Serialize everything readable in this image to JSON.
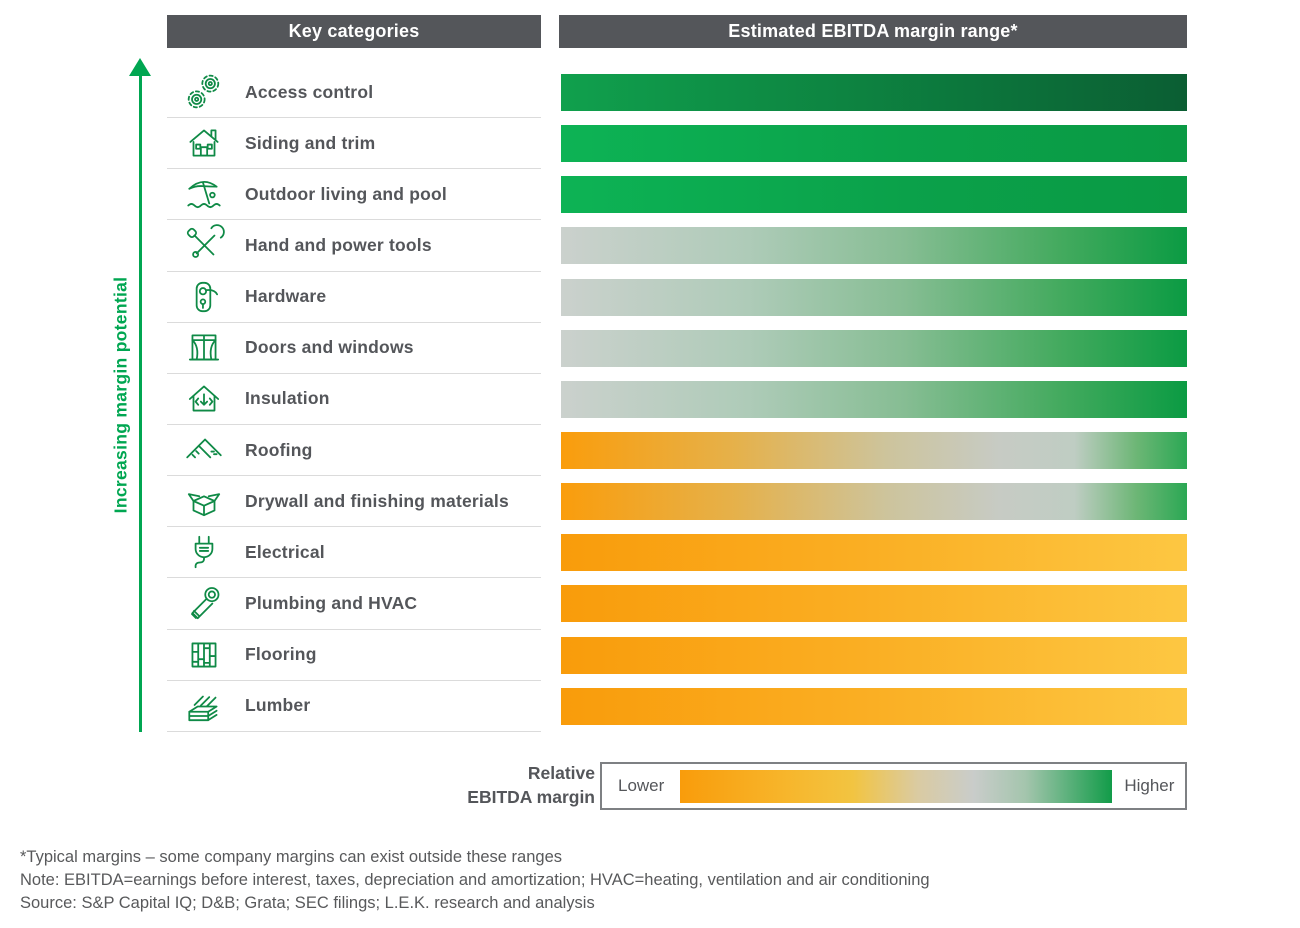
{
  "headers": {
    "left": "Key categories",
    "right": "Estimated EBITDA margin range*"
  },
  "axis_label": "Increasing margin potential",
  "legend": {
    "title_line1": "Relative",
    "title_line2": "EBITDA margin",
    "lower": "Lower",
    "higher": "Higher",
    "gradient": [
      [
        "#F99C0B",
        0
      ],
      [
        "#F7B62C",
        25
      ],
      [
        "#F2C441",
        40
      ],
      [
        "#DACBA2",
        55
      ],
      [
        "#C9CCCA",
        68
      ],
      [
        "#A4C5AD",
        80
      ],
      [
        "#129C49",
        100
      ]
    ]
  },
  "footnotes": [
    "*Typical margins – some company margins can exist outside these ranges",
    "Note: EBITDA=earnings before interest, taxes, depreciation and amortization; HVAC=heating, ventilation and air conditioning",
    "Source: S&P Capital IQ; D&B; Grata; SEC filings; L.E.K. research and analysis"
  ],
  "colors": {
    "header_bg": "#54565A",
    "text_dark": "#54565A",
    "text_muted": "#58595B",
    "accent_green": "#00A651",
    "icon_stroke": "#0F8A46",
    "separator": "#DBDBDB",
    "orange": "#F99C0B",
    "yellow": "#FDC742",
    "neutral_gray": "#C9CCCA",
    "green": "#0A9B43",
    "dark_green": "#0B5E33"
  },
  "chart_data": {
    "type": "heatmap",
    "title": "Estimated EBITDA margin range*",
    "x_axis": {
      "label": "Relative EBITDA margin",
      "scale": [
        "Lower",
        "Higher"
      ],
      "ticks": "none (qualitative)"
    },
    "y_axis": {
      "label": "Increasing margin potential",
      "direction": "margin potential increases toward top"
    },
    "legend_position": "bottom",
    "grid": false,
    "categories": [
      {
        "label": "Access control",
        "icon": "gears",
        "margin_range": "mid-green to darkest-green (highest)",
        "gradient": [
          [
            "#10A04D",
            0
          ],
          [
            "#0D8441",
            45
          ],
          [
            "#0B5E33",
            100
          ]
        ]
      },
      {
        "label": "Siding and trim",
        "icon": "house",
        "margin_range": "high (bright green)",
        "gradient": [
          [
            "#0DB355",
            0
          ],
          [
            "#0BA14A",
            55
          ],
          [
            "#0A9A44",
            100
          ]
        ]
      },
      {
        "label": "Outdoor living and pool",
        "icon": "beach-umbrella",
        "margin_range": "high (bright green)",
        "gradient": [
          [
            "#0DB355",
            0
          ],
          [
            "#0BA14A",
            55
          ],
          [
            "#0A9A44",
            100
          ]
        ]
      },
      {
        "label": "Hand and power tools",
        "icon": "tools",
        "margin_range": "mid (gray) to high (green)",
        "gradient": [
          [
            "#CBD1CD",
            0
          ],
          [
            "#AECBB8",
            30
          ],
          [
            "#86BD93",
            55
          ],
          [
            "#43AA5E",
            80
          ],
          [
            "#0B9B43",
            100
          ]
        ]
      },
      {
        "label": "Hardware",
        "icon": "door-handle",
        "margin_range": "mid (gray) to high (green)",
        "gradient": [
          [
            "#CBD1CD",
            0
          ],
          [
            "#AECBB8",
            30
          ],
          [
            "#86BD93",
            55
          ],
          [
            "#43AA5E",
            80
          ],
          [
            "#0B9B43",
            100
          ]
        ]
      },
      {
        "label": "Doors and windows",
        "icon": "window",
        "margin_range": "mid (gray) to high (green)",
        "gradient": [
          [
            "#CBD1CD",
            0
          ],
          [
            "#AECBB8",
            30
          ],
          [
            "#86BD93",
            55
          ],
          [
            "#43AA5E",
            80
          ],
          [
            "#0B9B43",
            100
          ]
        ]
      },
      {
        "label": "Insulation",
        "icon": "insulation-house",
        "margin_range": "mid (gray) to high (green)",
        "gradient": [
          [
            "#CBD1CD",
            0
          ],
          [
            "#AECBB8",
            30
          ],
          [
            "#86BD93",
            55
          ],
          [
            "#43AA5E",
            80
          ],
          [
            "#0B9B43",
            100
          ]
        ]
      },
      {
        "label": "Roofing",
        "icon": "roof",
        "margin_range": "low (orange) through mid (gray) to high (green)",
        "gradient": [
          [
            "#FA9D0C",
            0
          ],
          [
            "#E5B14B",
            28
          ],
          [
            "#CDC49C",
            52
          ],
          [
            "#C7CBC4",
            70
          ],
          [
            "#BFCDC3",
            82
          ],
          [
            "#6CB675",
            92
          ],
          [
            "#2BA854",
            100
          ]
        ]
      },
      {
        "label": "Drywall and finishing materials",
        "icon": "open-box",
        "margin_range": "low (orange) through mid (gray) to high (green)",
        "gradient": [
          [
            "#FA9D0C",
            0
          ],
          [
            "#E5B14B",
            28
          ],
          [
            "#CDC49C",
            52
          ],
          [
            "#C7CBC4",
            70
          ],
          [
            "#BFCDC3",
            82
          ],
          [
            "#6CB675",
            92
          ],
          [
            "#2BA854",
            100
          ]
        ]
      },
      {
        "label": "Electrical",
        "icon": "plug",
        "margin_range": "low (orange to yellow)",
        "gradient": [
          [
            "#F99C0B",
            0
          ],
          [
            "#FAAF24",
            50
          ],
          [
            "#FDC742",
            100
          ]
        ]
      },
      {
        "label": "Plumbing and HVAC",
        "icon": "pipe",
        "margin_range": "low (orange to yellow)",
        "gradient": [
          [
            "#F99C0B",
            0
          ],
          [
            "#FAAF24",
            50
          ],
          [
            "#FDC742",
            100
          ]
        ]
      },
      {
        "label": "Flooring",
        "icon": "floor-planks",
        "margin_range": "low (orange to yellow)",
        "gradient": [
          [
            "#F99C0B",
            0
          ],
          [
            "#FAAF24",
            50
          ],
          [
            "#FDC742",
            100
          ]
        ]
      },
      {
        "label": "Lumber",
        "icon": "lumber-stack",
        "margin_range": "low (orange to yellow)",
        "gradient": [
          [
            "#F99C0B",
            0
          ],
          [
            "#FAAF24",
            50
          ],
          [
            "#FDC742",
            100
          ]
        ]
      }
    ]
  }
}
